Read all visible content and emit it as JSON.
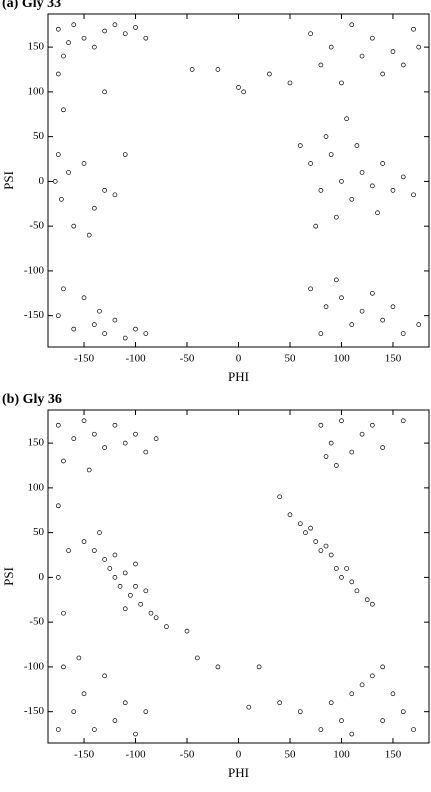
{
  "chart_data": [
    {
      "type": "scatter",
      "title": "(a) Gly 33",
      "xlabel": "PHI",
      "ylabel": "PSI",
      "color": "#000000",
      "xlim": [
        -185,
        185
      ],
      "ylim": [
        -185,
        187
      ],
      "xticks": [
        -150,
        -100,
        -50,
        0,
        50,
        100,
        150
      ],
      "yticks": [
        -150,
        -100,
        -50,
        0,
        50,
        100,
        150
      ],
      "x": [
        -175,
        -165,
        -160,
        -150,
        -170,
        -140,
        -120,
        -110,
        -100,
        -130,
        -90,
        -175,
        70,
        90,
        110,
        130,
        150,
        170,
        160,
        140,
        120,
        100,
        175,
        80,
        70,
        80,
        90,
        100,
        110,
        120,
        130,
        140,
        150,
        160,
        170,
        95,
        115,
        85,
        135,
        60,
        105,
        75,
        70,
        85,
        100,
        110,
        95,
        120,
        140,
        160,
        130,
        80,
        150,
        175,
        -175,
        -160,
        -140,
        -130,
        -120,
        -135,
        -110,
        -100,
        -150,
        -170,
        -90,
        -178,
        -172,
        -165,
        -150,
        -140,
        -130,
        -120,
        -160,
        -175,
        -145,
        -130,
        -170,
        -20,
        -45,
        0,
        30,
        5,
        50,
        -110
      ],
      "values": [
        170,
        155,
        175,
        160,
        140,
        150,
        175,
        165,
        172,
        168,
        160,
        120,
        165,
        150,
        175,
        160,
        145,
        170,
        130,
        120,
        140,
        110,
        150,
        130,
        20,
        -10,
        30,
        0,
        -20,
        10,
        -5,
        20,
        -10,
        5,
        -15,
        -40,
        40,
        50,
        -35,
        40,
        70,
        -50,
        -120,
        -140,
        -130,
        -160,
        -110,
        -145,
        -155,
        -170,
        -125,
        -170,
        -140,
        -160,
        -150,
        -165,
        -160,
        -170,
        -155,
        -145,
        -175,
        -165,
        -130,
        -120,
        -170,
        0,
        -20,
        10,
        20,
        -30,
        -10,
        -15,
        -50,
        30,
        -60,
        100,
        80,
        125,
        125,
        105,
        120,
        100,
        110,
        30
      ]
    },
    {
      "type": "scatter",
      "title": "(b) Gly 36",
      "xlabel": "PHI",
      "ylabel": "PSI",
      "color": "#000000",
      "xlim": [
        -185,
        185
      ],
      "ylim": [
        -185,
        187
      ],
      "xticks": [
        -150,
        -100,
        -50,
        0,
        50,
        100,
        150
      ],
      "yticks": [
        -150,
        -100,
        -50,
        0,
        50,
        100,
        150
      ],
      "x": [
        -175,
        -160,
        -150,
        -140,
        -130,
        -120,
        -110,
        -100,
        -90,
        -170,
        -80,
        -145,
        80,
        90,
        100,
        110,
        120,
        130,
        95,
        140,
        85,
        160,
        50,
        60,
        65,
        75,
        80,
        90,
        95,
        100,
        110,
        115,
        125,
        70,
        85,
        105,
        130,
        40,
        -150,
        -140,
        -130,
        -125,
        -120,
        -115,
        -110,
        -105,
        -100,
        -95,
        -90,
        -85,
        -80,
        -70,
        -135,
        -110,
        -100,
        -120,
        -175,
        -160,
        -150,
        -140,
        -130,
        -120,
        -110,
        -100,
        -170,
        -90,
        -155,
        60,
        80,
        90,
        100,
        110,
        120,
        130,
        140,
        150,
        170,
        110,
        160,
        40,
        140,
        -175,
        -170,
        -165,
        -175,
        -40,
        -20,
        10,
        20,
        -50
      ],
      "values": [
        170,
        155,
        175,
        160,
        145,
        170,
        150,
        160,
        140,
        130,
        155,
        120,
        170,
        150,
        175,
        140,
        160,
        170,
        125,
        145,
        135,
        175,
        70,
        60,
        50,
        40,
        30,
        25,
        10,
        0,
        -5,
        -15,
        -25,
        55,
        35,
        10,
        -30,
        90,
        40,
        30,
        20,
        10,
        0,
        -10,
        5,
        -20,
        -10,
        -30,
        -15,
        -40,
        -45,
        -55,
        50,
        -35,
        15,
        25,
        -170,
        -150,
        -130,
        -170,
        -110,
        -160,
        -140,
        -175,
        -100,
        -150,
        -90,
        -150,
        -170,
        -140,
        -160,
        -130,
        -120,
        -110,
        -100,
        -130,
        -170,
        -175,
        -150,
        -140,
        -160,
        0,
        -40,
        30,
        80,
        -90,
        -100,
        -145,
        -100,
        -60
      ]
    }
  ]
}
